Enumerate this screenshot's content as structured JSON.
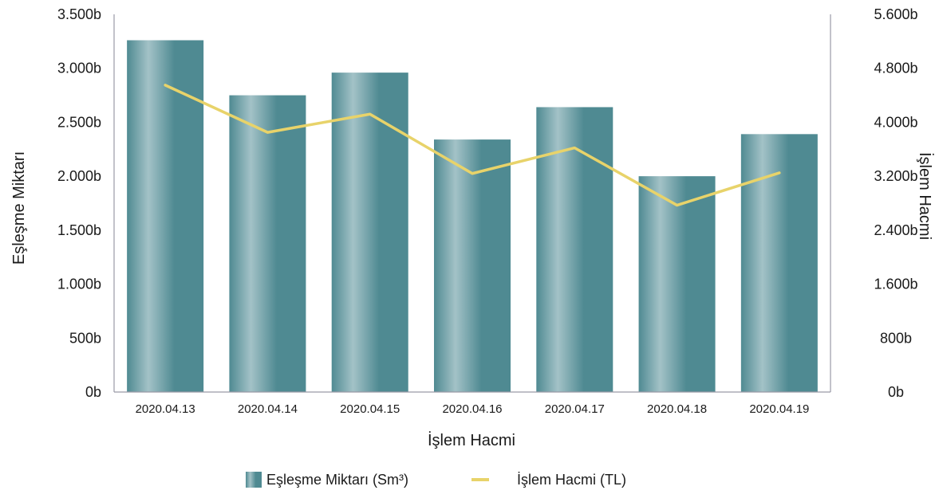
{
  "chart_data": {
    "type": "bar",
    "categories": [
      "2020.04.13",
      "2020.04.14",
      "2020.04.15",
      "2020.04.16",
      "2020.04.17",
      "2020.04.18",
      "2020.04.19"
    ],
    "series": [
      {
        "name": "Eşleşme Miktarı (Sm³)",
        "type": "bar",
        "axis": "left",
        "values": [
          3260,
          2750,
          2960,
          2340,
          2640,
          2000,
          2390
        ]
      },
      {
        "name": "İşlem Hacmi (TL)",
        "type": "line",
        "axis": "right",
        "values": [
          4550,
          3850,
          4120,
          3240,
          3620,
          2770,
          3250
        ]
      }
    ],
    "xlabel": "İşlem Hacmi",
    "ylabel": "Eşleşme Miktarı",
    "y2label": "İşlem Hacmi",
    "ylim": [
      0,
      3500
    ],
    "y2lim": [
      0,
      5600
    ],
    "yticks": [
      "0b",
      "500b",
      "1.000b",
      "1.500b",
      "2.000b",
      "2.500b",
      "3.000b",
      "3.500b"
    ],
    "y2ticks": [
      "0b",
      "800b",
      "1.600b",
      "2.400b",
      "3.200b",
      "4.000b",
      "4.800b",
      "5.600b"
    ],
    "legend_position": "bottom-center",
    "grid": false,
    "colors": {
      "bar_dark": "#4f8a92",
      "bar_light": "#a3c2c7",
      "line": "#e8d36a",
      "axis": "#9a9aa6"
    }
  }
}
